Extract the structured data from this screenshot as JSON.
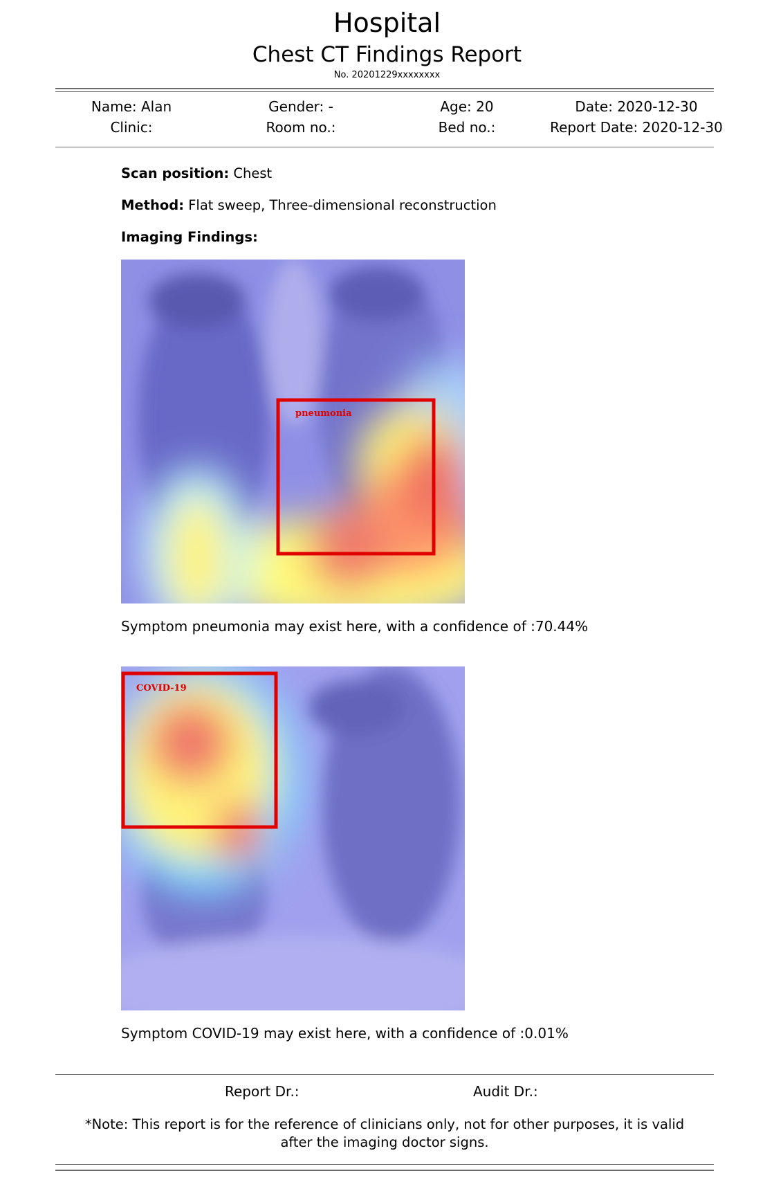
{
  "header": {
    "hospital": "Hospital",
    "report_title": "Chest CT Findings Report",
    "report_no": "No. 20201229xxxxxxxx"
  },
  "patient": {
    "name": "Name: Alan",
    "gender": "Gender: -",
    "age": "Age: 20",
    "date": "Date: 2020-12-30",
    "clinic": "Clinic:",
    "room": "Room no.:",
    "bed": "Bed no.:",
    "report_date": "Report Date: 2020-12-30"
  },
  "exam": {
    "scan_position_label": "Scan position:",
    "scan_position_value": "Chest",
    "method_label": "Method:",
    "method_value": "Flat sweep, Three-dimensional reconstruction",
    "findings_label": "Imaging Findings:"
  },
  "findings": [
    {
      "box_label": "pneumonia",
      "caption": "Symptom pneumonia may exist here, with a confidence of :70.44%",
      "confidence": 70.44
    },
    {
      "box_label": "COVID-19",
      "caption": "Symptom COVID-19 may exist here, with a confidence of :0.01%",
      "confidence": 0.01
    }
  ],
  "footer": {
    "report_dr": "Report Dr.:",
    "audit_dr": "Audit Dr.:",
    "note_line1": "*Note: This report is for the reference of clinicians only, not for other purposes, it is valid",
    "note_line2": "after the imaging doctor signs."
  },
  "colors": {
    "box": "#e00000",
    "rule": "#6b6b6b"
  }
}
